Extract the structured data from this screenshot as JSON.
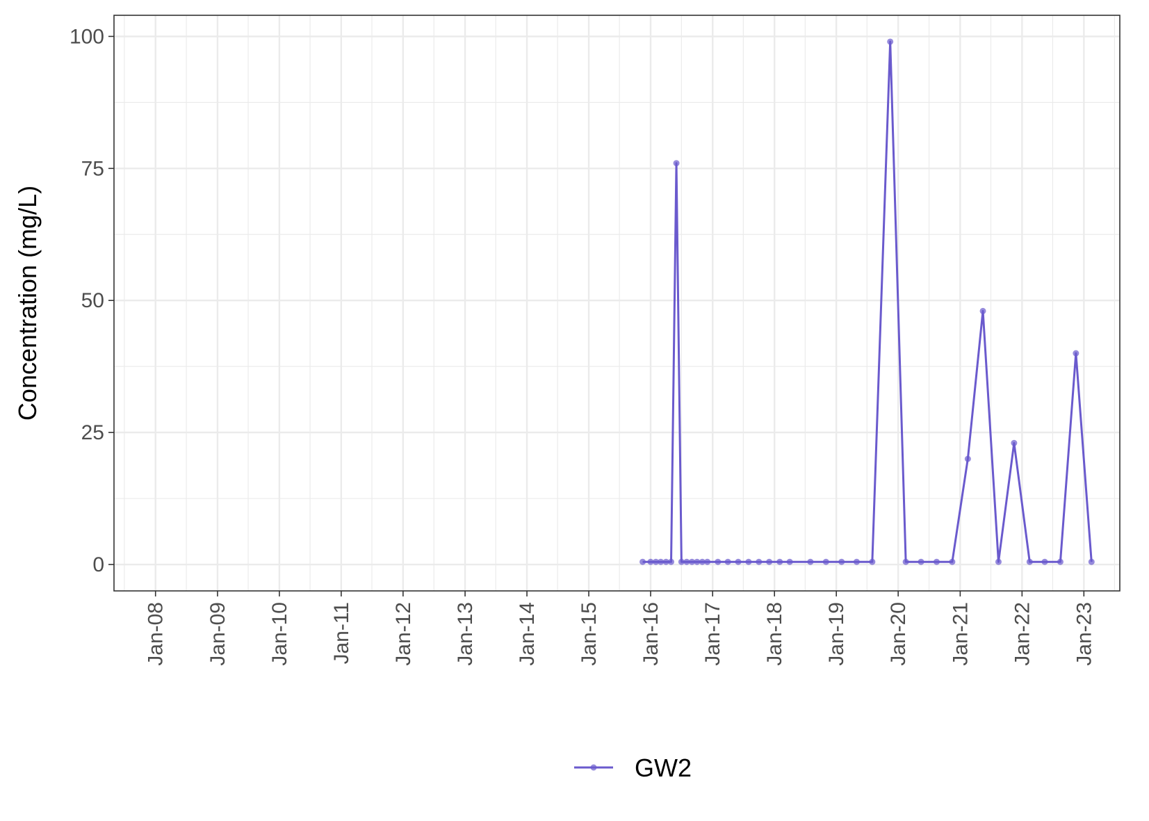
{
  "chart_data": {
    "type": "line",
    "title": "",
    "xlabel": "",
    "ylabel": "Concentration (mg/L)",
    "x_axis": "date",
    "xlim": [
      "2007-05-01",
      "2023-08-01"
    ],
    "ylim": [
      -5,
      104
    ],
    "x_ticks": [
      {
        "date": "2008-01-01",
        "label": "Jan-08"
      },
      {
        "date": "2009-01-01",
        "label": "Jan-09"
      },
      {
        "date": "2010-01-01",
        "label": "Jan-10"
      },
      {
        "date": "2011-01-01",
        "label": "Jan-11"
      },
      {
        "date": "2012-01-01",
        "label": "Jan-12"
      },
      {
        "date": "2013-01-01",
        "label": "Jan-13"
      },
      {
        "date": "2014-01-01",
        "label": "Jan-14"
      },
      {
        "date": "2015-01-01",
        "label": "Jan-15"
      },
      {
        "date": "2016-01-01",
        "label": "Jan-16"
      },
      {
        "date": "2017-01-01",
        "label": "Jan-17"
      },
      {
        "date": "2018-01-01",
        "label": "Jan-18"
      },
      {
        "date": "2019-01-01",
        "label": "Jan-19"
      },
      {
        "date": "2020-01-01",
        "label": "Jan-20"
      },
      {
        "date": "2021-01-01",
        "label": "Jan-21"
      },
      {
        "date": "2022-01-01",
        "label": "Jan-22"
      },
      {
        "date": "2023-01-01",
        "label": "Jan-23"
      }
    ],
    "y_ticks": [
      {
        "value": 0,
        "label": "0"
      },
      {
        "value": 25,
        "label": "25"
      },
      {
        "value": 50,
        "label": "50"
      },
      {
        "value": 75,
        "label": "75"
      },
      {
        "value": 100,
        "label": "100"
      }
    ],
    "grid": true,
    "legend_position": "bottom",
    "series": [
      {
        "name": "GW2",
        "color": "#6a5acd",
        "points": [
          {
            "x": "2015-11-15",
            "y": 0.5
          },
          {
            "x": "2016-01-01",
            "y": 0.5
          },
          {
            "x": "2016-02-01",
            "y": 0.5
          },
          {
            "x": "2016-03-01",
            "y": 0.5
          },
          {
            "x": "2016-04-01",
            "y": 0.5
          },
          {
            "x": "2016-05-01",
            "y": 0.5
          },
          {
            "x": "2016-06-01",
            "y": 76
          },
          {
            "x": "2016-07-01",
            "y": 0.5
          },
          {
            "x": "2016-08-01",
            "y": 0.5
          },
          {
            "x": "2016-09-01",
            "y": 0.5
          },
          {
            "x": "2016-10-01",
            "y": 0.5
          },
          {
            "x": "2016-11-01",
            "y": 0.5
          },
          {
            "x": "2016-12-01",
            "y": 0.5
          },
          {
            "x": "2017-02-01",
            "y": 0.5
          },
          {
            "x": "2017-04-01",
            "y": 0.5
          },
          {
            "x": "2017-06-01",
            "y": 0.5
          },
          {
            "x": "2017-08-01",
            "y": 0.5
          },
          {
            "x": "2017-10-01",
            "y": 0.5
          },
          {
            "x": "2017-12-01",
            "y": 0.5
          },
          {
            "x": "2018-02-01",
            "y": 0.5
          },
          {
            "x": "2018-04-01",
            "y": 0.5
          },
          {
            "x": "2018-08-01",
            "y": 0.5
          },
          {
            "x": "2018-11-01",
            "y": 0.5
          },
          {
            "x": "2019-02-01",
            "y": 0.5
          },
          {
            "x": "2019-05-01",
            "y": 0.5
          },
          {
            "x": "2019-08-01",
            "y": 0.5
          },
          {
            "x": "2019-11-15",
            "y": 99
          },
          {
            "x": "2020-02-15",
            "y": 0.5
          },
          {
            "x": "2020-05-15",
            "y": 0.5
          },
          {
            "x": "2020-08-15",
            "y": 0.5
          },
          {
            "x": "2020-11-15",
            "y": 0.5
          },
          {
            "x": "2021-02-15",
            "y": 20
          },
          {
            "x": "2021-05-15",
            "y": 48
          },
          {
            "x": "2021-08-15",
            "y": 0.5
          },
          {
            "x": "2021-11-15",
            "y": 23
          },
          {
            "x": "2022-02-15",
            "y": 0.5
          },
          {
            "x": "2022-05-15",
            "y": 0.5
          },
          {
            "x": "2022-08-15",
            "y": 0.5
          },
          {
            "x": "2022-11-15",
            "y": 40
          },
          {
            "x": "2023-02-15",
            "y": 0.5
          }
        ]
      }
    ]
  }
}
